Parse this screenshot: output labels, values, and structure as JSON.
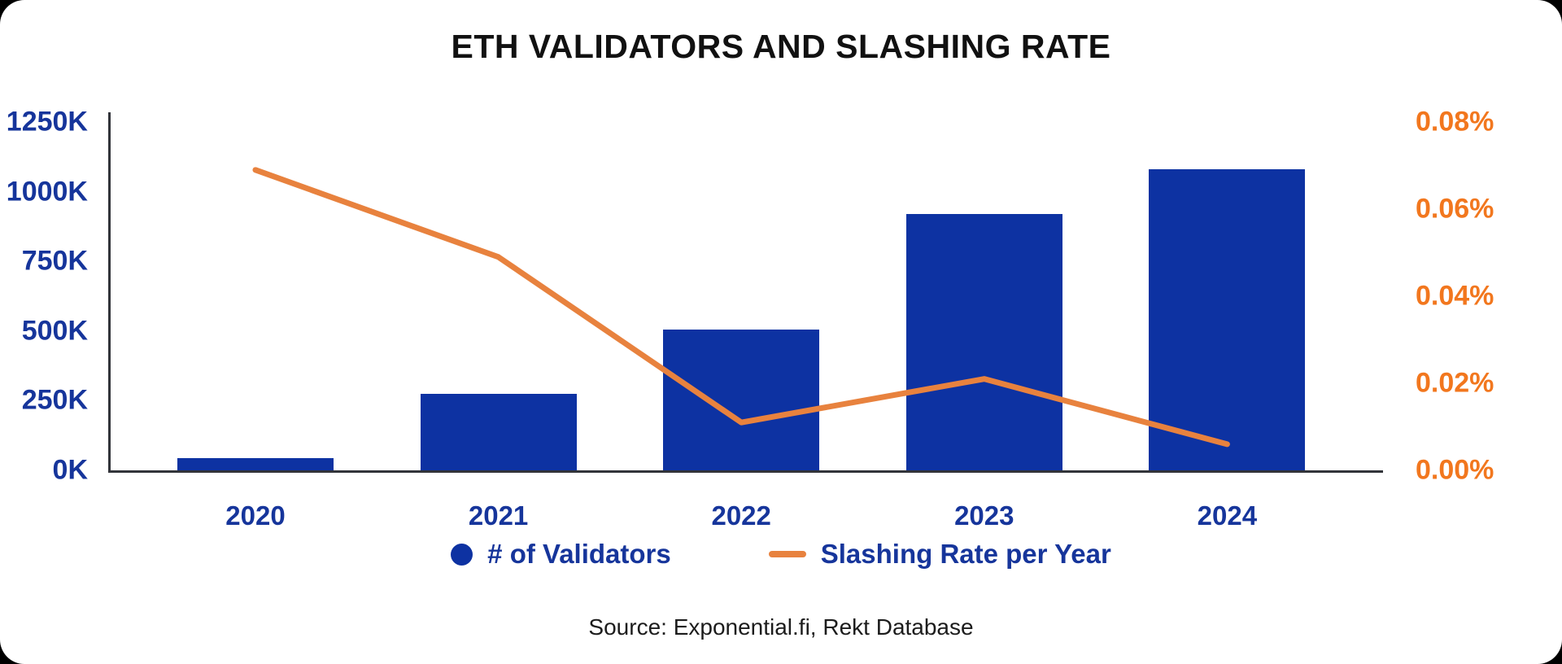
{
  "title": "ETH VALIDATORS AND SLASHING RATE",
  "source_note": "Source: Exponential.fi, Rekt Database",
  "colors": {
    "bar_blue": "#0d32a2",
    "navy_text": "#16359b",
    "orange_line": "#e8823e",
    "orange_text": "#f2771e",
    "axis_line": "#32343a",
    "title_text": "#111111",
    "background": "#000000",
    "card": "#ffffff"
  },
  "legend": {
    "items": [
      {
        "label": "# of Validators",
        "marker": "circle"
      },
      {
        "label": "Slashing Rate per Year",
        "marker": "line"
      }
    ]
  },
  "chart_data": {
    "type": "bar",
    "categories": [
      "2020",
      "2021",
      "2022",
      "2023",
      "2024"
    ],
    "series": [
      {
        "name": "# of Validators",
        "type": "bar",
        "axis": "left",
        "unit": "K",
        "values": [
          45,
          275,
          505,
          920,
          1080
        ]
      },
      {
        "name": "Slashing Rate per Year",
        "type": "line",
        "axis": "right",
        "unit": "%",
        "values": [
          0.069,
          0.049,
          0.011,
          0.021,
          0.006
        ]
      }
    ],
    "left_axis": {
      "ylim": [
        0,
        1250
      ],
      "tick_labels": [
        "0K",
        "250K",
        "500K",
        "750K",
        "1000K",
        "1250K"
      ]
    },
    "right_axis": {
      "ylim": [
        0,
        0.08
      ],
      "tick_labels": [
        "0.00%",
        "0.02%",
        "0.04%",
        "0.06%",
        "0.08%"
      ]
    },
    "grid": false,
    "legend_position": "bottom"
  }
}
